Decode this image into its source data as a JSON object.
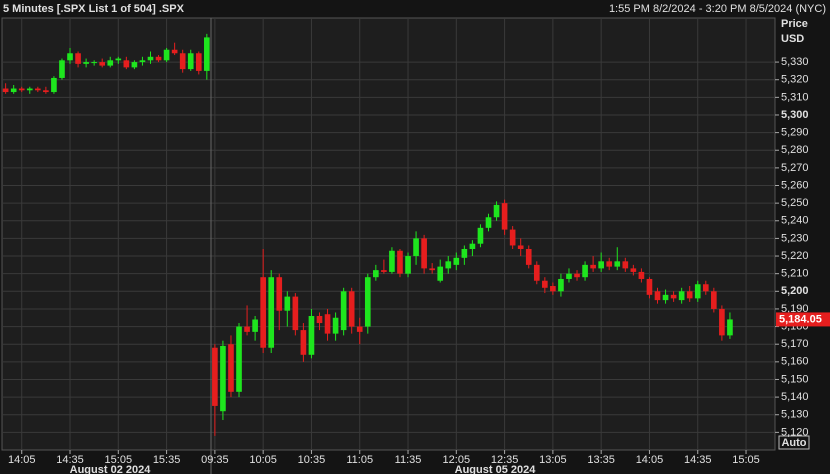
{
  "chart_data": {
    "type": "candlestick",
    "title": "5 Minutes [.SPX List 1 of 504] .SPX",
    "subtitle": "1:55 PM 8/2/2024 - 3:20 PM 8/5/2024 (NYC)",
    "y_axis_label": "Price",
    "y_axis_unit": "USD",
    "button": "Auto",
    "date_labels": [
      "August 02 2024",
      "August 05 2024"
    ],
    "up_color": "#1ee61e",
    "down_color": "#e61e1e",
    "grid": true,
    "major_tick_every": 100,
    "xlim": [
      -0.7,
      95.6
    ],
    "ylim": [
      5110,
      5355
    ],
    "xticks": [
      {
        "value": 2,
        "label": "14:05"
      },
      {
        "value": 8,
        "label": "14:35"
      },
      {
        "value": 14,
        "label": "15:05"
      },
      {
        "value": 20,
        "label": "15:35"
      },
      {
        "value": 26,
        "label": "09:35"
      },
      {
        "value": 32,
        "label": "10:05"
      },
      {
        "value": 38,
        "label": "10:35"
      },
      {
        "value": 44,
        "label": "11:05"
      },
      {
        "value": 50,
        "label": "11:35"
      },
      {
        "value": 56,
        "label": "12:05"
      },
      {
        "value": 62,
        "label": "12:35"
      },
      {
        "value": 68,
        "label": "13:05"
      },
      {
        "value": 74,
        "label": "13:35"
      },
      {
        "value": 80,
        "label": "14:05"
      },
      {
        "value": 86,
        "label": "14:35"
      },
      {
        "value": 92,
        "label": "15:05"
      }
    ],
    "yticks": [
      {
        "value": 5120,
        "label": "5,120"
      },
      {
        "value": 5130,
        "label": "5,130"
      },
      {
        "value": 5140,
        "label": "5,140"
      },
      {
        "value": 5150,
        "label": "5,150"
      },
      {
        "value": 5160,
        "label": "5,160"
      },
      {
        "value": 5170,
        "label": "5,170"
      },
      {
        "value": 5180,
        "label": "5,180"
      },
      {
        "value": 5190,
        "label": "5,190"
      },
      {
        "value": 5200,
        "label": "5,200"
      },
      {
        "value": 5210,
        "label": "5,210"
      },
      {
        "value": 5220,
        "label": "5,220"
      },
      {
        "value": 5230,
        "label": "5,230"
      },
      {
        "value": 5240,
        "label": "5,240"
      },
      {
        "value": 5250,
        "label": "5,250"
      },
      {
        "value": 5260,
        "label": "5,260"
      },
      {
        "value": 5270,
        "label": "5,270"
      },
      {
        "value": 5280,
        "label": "5,280"
      },
      {
        "value": 5290,
        "label": "5,290"
      },
      {
        "value": 5300,
        "label": "5,300"
      },
      {
        "value": 5310,
        "label": "5,310"
      },
      {
        "value": 5320,
        "label": "5,320"
      },
      {
        "value": 5330,
        "label": "5,330"
      }
    ],
    "last_price": {
      "value": 5184.05,
      "label": "5,184.05"
    },
    "ohlc": [
      [
        5315,
        5318,
        5312,
        5313
      ],
      [
        5313,
        5317,
        5312,
        5315
      ],
      [
        5315,
        5316,
        5313,
        5314
      ],
      [
        5314,
        5316,
        5312,
        5315
      ],
      [
        5315,
        5316,
        5313,
        5314
      ],
      [
        5314,
        5316,
        5312,
        5313
      ],
      [
        5313,
        5322,
        5312,
        5321
      ],
      [
        5321,
        5332,
        5320,
        5331
      ],
      [
        5331,
        5338,
        5329,
        5335
      ],
      [
        5335,
        5336,
        5327,
        5329
      ],
      [
        5329,
        5332,
        5327,
        5330
      ],
      [
        5330,
        5331,
        5328,
        5330
      ],
      [
        5330,
        5332,
        5327,
        5328
      ],
      [
        5328,
        5333,
        5327,
        5331
      ],
      [
        5331,
        5333,
        5329,
        5332
      ],
      [
        5331,
        5333,
        5326,
        5327
      ],
      [
        5327,
        5331,
        5326,
        5330
      ],
      [
        5330,
        5333,
        5328,
        5331
      ],
      [
        5331,
        5336,
        5329,
        5333
      ],
      [
        5333,
        5334,
        5330,
        5331
      ],
      [
        5331,
        5338,
        5330,
        5337
      ],
      [
        5337,
        5341,
        5334,
        5335
      ],
      [
        5335,
        5337,
        5324,
        5326
      ],
      [
        5326,
        5337,
        5325,
        5335
      ],
      [
        5335,
        5336,
        5323,
        5325
      ],
      [
        5325,
        5346,
        5320,
        5344
      ],
      [
        5168,
        5170,
        5118,
        5135
      ],
      [
        5132,
        5172,
        5127,
        5169
      ],
      [
        5170,
        5175,
        5140,
        5143
      ],
      [
        5143,
        5182,
        5140,
        5180
      ],
      [
        5180,
        5192,
        5175,
        5177
      ],
      [
        5177,
        5186,
        5172,
        5184
      ],
      [
        5208,
        5224,
        5165,
        5168
      ],
      [
        5168,
        5212,
        5165,
        5208
      ],
      [
        5208,
        5210,
        5178,
        5189
      ],
      [
        5189,
        5200,
        5180,
        5197
      ],
      [
        5197,
        5199,
        5175,
        5178
      ],
      [
        5178,
        5182,
        5160,
        5164
      ],
      [
        5164,
        5190,
        5162,
        5186
      ],
      [
        5186,
        5188,
        5178,
        5182
      ],
      [
        5187,
        5190,
        5172,
        5176
      ],
      [
        5176,
        5188,
        5172,
        5185
      ],
      [
        5178,
        5202,
        5175,
        5200
      ],
      [
        5200,
        5202,
        5176,
        5180
      ],
      [
        5180,
        5185,
        5170,
        5177
      ],
      [
        5180,
        5210,
        5176,
        5208
      ],
      [
        5208,
        5215,
        5206,
        5212
      ],
      [
        5212,
        5218,
        5210,
        5211
      ],
      [
        5211,
        5225,
        5210,
        5223
      ],
      [
        5223,
        5224,
        5208,
        5210
      ],
      [
        5210,
        5222,
        5208,
        5220
      ],
      [
        5220,
        5234,
        5215,
        5230
      ],
      [
        5230,
        5232,
        5210,
        5213
      ],
      [
        5213,
        5216,
        5210,
        5212
      ],
      [
        5206,
        5218,
        5205,
        5214
      ],
      [
        5213,
        5220,
        5210,
        5217
      ],
      [
        5215,
        5222,
        5212,
        5219
      ],
      [
        5219,
        5226,
        5215,
        5224
      ],
      [
        5224,
        5229,
        5220,
        5227
      ],
      [
        5227,
        5238,
        5225,
        5236
      ],
      [
        5236,
        5244,
        5234,
        5242
      ],
      [
        5242,
        5251,
        5240,
        5249
      ],
      [
        5250,
        5252,
        5232,
        5235
      ],
      [
        5235,
        5237,
        5224,
        5226
      ],
      [
        5226,
        5230,
        5220,
        5224
      ],
      [
        5224,
        5226,
        5213,
        5215
      ],
      [
        5215,
        5217,
        5204,
        5206
      ],
      [
        5206,
        5208,
        5199,
        5202
      ],
      [
        5203,
        5205,
        5198,
        5200
      ],
      [
        5200,
        5210,
        5197,
        5207
      ],
      [
        5207,
        5213,
        5205,
        5210
      ],
      [
        5210,
        5212,
        5206,
        5208
      ],
      [
        5208,
        5217,
        5206,
        5215
      ],
      [
        5215,
        5220,
        5211,
        5213
      ],
      [
        5213,
        5222,
        5211,
        5217
      ],
      [
        5217,
        5219,
        5212,
        5214
      ],
      [
        5214,
        5225,
        5212,
        5217
      ],
      [
        5217,
        5219,
        5211,
        5213
      ],
      [
        5213,
        5215,
        5209,
        5211
      ],
      [
        5211,
        5213,
        5205,
        5207
      ],
      [
        5207,
        5208,
        5196,
        5198
      ],
      [
        5200,
        5202,
        5193,
        5195
      ],
      [
        5195,
        5201,
        5193,
        5198
      ],
      [
        5198,
        5200,
        5194,
        5196
      ],
      [
        5195,
        5202,
        5193,
        5200
      ],
      [
        5200,
        5203,
        5194,
        5196
      ],
      [
        5196,
        5206,
        5194,
        5204
      ],
      [
        5204,
        5206,
        5198,
        5200
      ],
      [
        5200,
        5202,
        5188,
        5190
      ],
      [
        5190,
        5192,
        5172,
        5175
      ],
      [
        5175,
        5188,
        5173,
        5184.05
      ]
    ]
  }
}
